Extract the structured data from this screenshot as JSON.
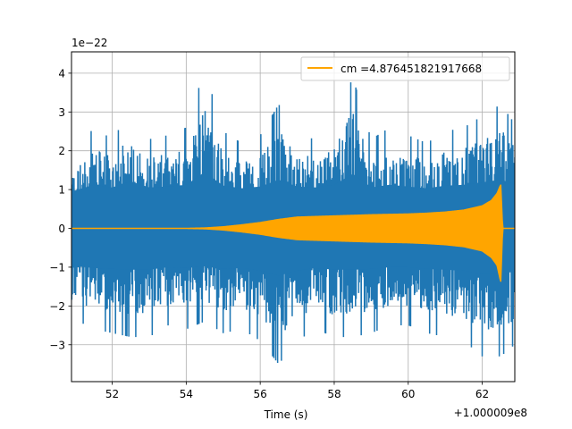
{
  "chart_data": {
    "type": "line",
    "title": "",
    "xlabel": "Time (s)",
    "ylabel": "",
    "x_offset_label": "+1.000009e8",
    "y_exponent_label": "1e−22",
    "xlim": [
      50.9,
      62.88
    ],
    "ylim": [
      -3.95,
      4.55
    ],
    "x_ticks": [
      52,
      54,
      56,
      58,
      60,
      62
    ],
    "y_ticks": [
      -3,
      -2,
      -1,
      0,
      1,
      2,
      3,
      4
    ],
    "x_tick_labels": [
      "52",
      "54",
      "56",
      "58",
      "60",
      "62"
    ],
    "y_tick_labels": [
      "−3",
      "−2",
      "−1",
      "0",
      "1",
      "2",
      "3",
      "4"
    ],
    "grid": true,
    "legend_position": "top-right",
    "series": [
      {
        "name": "",
        "color": "#1f77b4",
        "style": "dense noise",
        "envelope": {
          "x": [
            50.9,
            51.5,
            52.0,
            52.5,
            53.0,
            53.5,
            54.0,
            54.5,
            55.0,
            55.5,
            56.0,
            56.5,
            57.0,
            57.5,
            58.0,
            58.5,
            59.0,
            59.5,
            60.0,
            60.5,
            61.0,
            61.5,
            62.0,
            62.5,
            62.88
          ],
          "upper": [
            1.8,
            2.6,
            2.3,
            3.0,
            2.3,
            2.4,
            2.6,
            4.1,
            2.5,
            2.2,
            2.4,
            3.2,
            2.4,
            2.3,
            2.6,
            3.9,
            2.3,
            2.6,
            2.4,
            2.2,
            2.5,
            2.6,
            2.9,
            3.2,
            2.7
          ],
          "lower": [
            -2.3,
            -2.6,
            -2.7,
            -2.8,
            -2.8,
            -2.5,
            -2.6,
            -2.4,
            -2.7,
            -2.6,
            -2.9,
            -3.5,
            -2.9,
            -2.6,
            -2.8,
            -2.8,
            -2.7,
            -2.5,
            -2.5,
            -2.7,
            -2.8,
            -2.9,
            -3.3,
            -3.3,
            -3.0
          ]
        }
      },
      {
        "name": "cm =4.876451821917668",
        "color": "#ffa500",
        "style": "chirp",
        "envelope": {
          "x": [
            50.9,
            54.0,
            54.5,
            55.0,
            55.5,
            56.0,
            56.5,
            57.0,
            58.0,
            59.0,
            60.0,
            60.5,
            61.0,
            61.5,
            62.0,
            62.25,
            62.4,
            62.5,
            62.55,
            62.88
          ],
          "upper": [
            0.0,
            0.0,
            0.01,
            0.04,
            0.09,
            0.15,
            0.23,
            0.29,
            0.32,
            0.35,
            0.37,
            0.39,
            0.42,
            0.47,
            0.58,
            0.72,
            0.9,
            1.13,
            0.0,
            0.0
          ],
          "lower": [
            0.0,
            0.0,
            -0.01,
            -0.04,
            -0.09,
            -0.15,
            -0.23,
            -0.29,
            -0.32,
            -0.35,
            -0.37,
            -0.39,
            -0.42,
            -0.47,
            -0.58,
            -0.75,
            -0.95,
            -1.38,
            0.0,
            0.0
          ]
        }
      }
    ]
  }
}
